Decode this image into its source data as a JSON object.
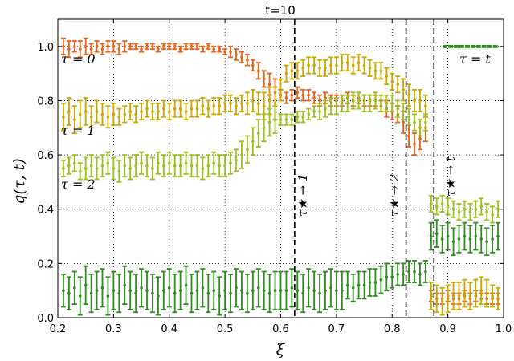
{
  "chart_data": {
    "type": "scatter",
    "title": "t=10",
    "xlabel": "ξ",
    "ylabel": "q(τ, t)",
    "xlim": [
      0.2,
      1.0
    ],
    "ylim": [
      0.0,
      1.1
    ],
    "xticks": [
      0.2,
      0.3,
      0.4,
      0.5,
      0.6,
      0.7,
      0.8,
      0.9,
      1.0
    ],
    "xtick_labels": [
      "0.2",
      "0.3",
      "0.4",
      "0.5",
      "0.6",
      "0.7",
      "0.8",
      "0.9",
      "1.0"
    ],
    "yticks": [
      0.0,
      0.2,
      0.4,
      0.6,
      0.8,
      1.0
    ],
    "ytick_labels": [
      "0.0",
      "0.2",
      "0.4",
      "0.6",
      "0.8",
      "1.0"
    ],
    "grid": true,
    "x": [
      0.21,
      0.22,
      0.23,
      0.24,
      0.25,
      0.26,
      0.27,
      0.28,
      0.29,
      0.3,
      0.31,
      0.32,
      0.33,
      0.34,
      0.35,
      0.36,
      0.37,
      0.38,
      0.39,
      0.4,
      0.41,
      0.42,
      0.43,
      0.44,
      0.45,
      0.46,
      0.47,
      0.48,
      0.49,
      0.5,
      0.51,
      0.52,
      0.53,
      0.54,
      0.55,
      0.56,
      0.57,
      0.58,
      0.59,
      0.6,
      0.61,
      0.62,
      0.63,
      0.64,
      0.65,
      0.66,
      0.67,
      0.68,
      0.69,
      0.7,
      0.71,
      0.72,
      0.73,
      0.74,
      0.75,
      0.76,
      0.77,
      0.78,
      0.79,
      0.8,
      0.81,
      0.82,
      0.83,
      0.84,
      0.85,
      0.86,
      0.87,
      0.88,
      0.89,
      0.9,
      0.91,
      0.92,
      0.93,
      0.94,
      0.95,
      0.96,
      0.97,
      0.98,
      0.99
    ],
    "series": [
      {
        "color": "#e8621a",
        "values": [
          1.0,
          0.99,
          1.0,
          0.99,
          1.0,
          0.99,
          1.0,
          0.99,
          1.0,
          1.0,
          0.99,
          1.0,
          1.0,
          1.0,
          0.99,
          1.0,
          1.0,
          0.99,
          1.0,
          1.0,
          1.0,
          0.99,
          1.0,
          1.0,
          1.0,
          0.99,
          1.0,
          0.99,
          0.99,
          0.98,
          0.98,
          0.97,
          0.96,
          0.95,
          0.93,
          0.91,
          0.88,
          0.86,
          0.83,
          0.82,
          0.81,
          0.82,
          0.83,
          0.82,
          0.82,
          0.81,
          0.8,
          0.81,
          0.8,
          0.8,
          0.8,
          0.81,
          0.8,
          0.81,
          0.8,
          0.8,
          0.8,
          0.78,
          0.77,
          0.76,
          0.75,
          0.72,
          0.67,
          0.64,
          0.66,
          0.7,
          0.08,
          0.07,
          0.07,
          0.08,
          0.07,
          0.07,
          0.08,
          0.07,
          0.08,
          0.07,
          0.07,
          0.07,
          0.07
        ],
        "errors": [
          0.03,
          0.03,
          0.02,
          0.03,
          0.03,
          0.02,
          0.02,
          0.02,
          0.02,
          0.02,
          0.02,
          0.02,
          0.01,
          0.01,
          0.01,
          0.01,
          0.01,
          0.01,
          0.01,
          0.01,
          0.01,
          0.01,
          0.01,
          0.01,
          0.01,
          0.01,
          0.01,
          0.01,
          0.01,
          0.01,
          0.02,
          0.02,
          0.02,
          0.02,
          0.02,
          0.03,
          0.03,
          0.04,
          0.05,
          0.02,
          0.02,
          0.02,
          0.02,
          0.02,
          0.02,
          0.02,
          0.02,
          0.02,
          0.02,
          0.02,
          0.02,
          0.02,
          0.02,
          0.02,
          0.02,
          0.02,
          0.02,
          0.02,
          0.03,
          0.03,
          0.03,
          0.04,
          0.04,
          0.04,
          0.04,
          0.05,
          0.02,
          0.02,
          0.02,
          0.02,
          0.02,
          0.02,
          0.02,
          0.02,
          0.02,
          0.02,
          0.02,
          0.02,
          0.02
        ]
      },
      {
        "color": "#c9a800",
        "values": [
          0.74,
          0.76,
          0.73,
          0.75,
          0.76,
          0.74,
          0.76,
          0.75,
          0.74,
          0.75,
          0.74,
          0.75,
          0.76,
          0.75,
          0.76,
          0.77,
          0.76,
          0.76,
          0.77,
          0.76,
          0.77,
          0.77,
          0.76,
          0.77,
          0.77,
          0.78,
          0.77,
          0.78,
          0.78,
          0.79,
          0.79,
          0.78,
          0.79,
          0.79,
          0.8,
          0.79,
          0.78,
          0.8,
          0.79,
          0.84,
          0.9,
          0.91,
          0.91,
          0.92,
          0.93,
          0.93,
          0.92,
          0.92,
          0.93,
          0.93,
          0.94,
          0.94,
          0.93,
          0.94,
          0.93,
          0.92,
          0.91,
          0.91,
          0.89,
          0.87,
          0.86,
          0.84,
          0.82,
          0.8,
          0.8,
          0.78,
          0.08,
          0.07,
          0.06,
          0.07,
          0.08,
          0.08,
          0.09,
          0.08,
          0.09,
          0.1,
          0.09,
          0.08,
          0.07
        ],
        "errors": [
          0.05,
          0.05,
          0.05,
          0.05,
          0.05,
          0.04,
          0.04,
          0.04,
          0.04,
          0.04,
          0.03,
          0.03,
          0.03,
          0.03,
          0.03,
          0.03,
          0.03,
          0.03,
          0.03,
          0.03,
          0.03,
          0.03,
          0.03,
          0.03,
          0.03,
          0.03,
          0.03,
          0.03,
          0.03,
          0.03,
          0.03,
          0.03,
          0.03,
          0.04,
          0.04,
          0.04,
          0.05,
          0.05,
          0.06,
          0.04,
          0.03,
          0.03,
          0.03,
          0.03,
          0.03,
          0.03,
          0.03,
          0.03,
          0.03,
          0.03,
          0.03,
          0.03,
          0.03,
          0.03,
          0.03,
          0.03,
          0.03,
          0.03,
          0.03,
          0.03,
          0.03,
          0.04,
          0.04,
          0.04,
          0.04,
          0.04,
          0.05,
          0.05,
          0.05,
          0.05,
          0.05,
          0.05,
          0.05,
          0.05,
          0.05,
          0.05,
          0.05,
          0.04,
          0.04
        ]
      },
      {
        "color": "#9bc11b",
        "values": [
          0.55,
          0.56,
          0.57,
          0.54,
          0.55,
          0.56,
          0.55,
          0.56,
          0.57,
          0.55,
          0.54,
          0.56,
          0.55,
          0.56,
          0.57,
          0.56,
          0.55,
          0.57,
          0.56,
          0.57,
          0.56,
          0.56,
          0.57,
          0.56,
          0.56,
          0.55,
          0.56,
          0.57,
          0.56,
          0.56,
          0.57,
          0.58,
          0.6,
          0.62,
          0.65,
          0.68,
          0.7,
          0.72,
          0.73,
          0.73,
          0.73,
          0.73,
          0.74,
          0.74,
          0.75,
          0.76,
          0.76,
          0.77,
          0.78,
          0.78,
          0.79,
          0.79,
          0.8,
          0.8,
          0.79,
          0.79,
          0.8,
          0.79,
          0.79,
          0.79,
          0.77,
          0.76,
          0.74,
          0.72,
          0.7,
          0.72,
          0.42,
          0.41,
          0.42,
          0.41,
          0.4,
          0.39,
          0.4,
          0.39,
          0.4,
          0.41,
          0.39,
          0.38,
          0.4
        ],
        "errors": [
          0.03,
          0.03,
          0.03,
          0.03,
          0.04,
          0.04,
          0.04,
          0.04,
          0.04,
          0.04,
          0.04,
          0.04,
          0.04,
          0.04,
          0.04,
          0.04,
          0.04,
          0.04,
          0.04,
          0.04,
          0.04,
          0.04,
          0.04,
          0.04,
          0.04,
          0.04,
          0.04,
          0.04,
          0.04,
          0.04,
          0.04,
          0.04,
          0.05,
          0.05,
          0.05,
          0.05,
          0.05,
          0.05,
          0.05,
          0.02,
          0.02,
          0.02,
          0.02,
          0.02,
          0.02,
          0.02,
          0.03,
          0.03,
          0.03,
          0.03,
          0.03,
          0.03,
          0.03,
          0.03,
          0.03,
          0.03,
          0.03,
          0.03,
          0.03,
          0.03,
          0.03,
          0.03,
          0.03,
          0.03,
          0.03,
          0.03,
          0.03,
          0.03,
          0.03,
          0.03,
          0.03,
          0.03,
          0.03,
          0.03,
          0.03,
          0.03,
          0.03,
          0.03,
          0.03
        ]
      },
      {
        "color": "#2e8b1e",
        "values": [
          0.1,
          0.09,
          0.11,
          0.08,
          0.12,
          0.09,
          0.1,
          0.11,
          0.08,
          0.1,
          0.09,
          0.12,
          0.1,
          0.09,
          0.11,
          0.1,
          0.09,
          0.08,
          0.1,
          0.11,
          0.09,
          0.1,
          0.12,
          0.09,
          0.1,
          0.11,
          0.09,
          0.1,
          0.08,
          0.1,
          0.09,
          0.11,
          0.1,
          0.09,
          0.1,
          0.11,
          0.1,
          0.09,
          0.1,
          0.1,
          0.1,
          0.11,
          0.1,
          0.09,
          0.11,
          0.1,
          0.09,
          0.1,
          0.11,
          0.1,
          0.1,
          0.12,
          0.11,
          0.12,
          0.12,
          0.13,
          0.13,
          0.14,
          0.15,
          0.15,
          0.16,
          0.16,
          0.17,
          0.17,
          0.16,
          0.17,
          0.3,
          0.31,
          0.29,
          0.3,
          0.28,
          0.29,
          0.3,
          0.29,
          0.3,
          0.29,
          0.28,
          0.29,
          0.3
        ],
        "errors": [
          0.06,
          0.06,
          0.06,
          0.07,
          0.07,
          0.07,
          0.07,
          0.07,
          0.07,
          0.07,
          0.07,
          0.07,
          0.07,
          0.07,
          0.07,
          0.07,
          0.07,
          0.07,
          0.07,
          0.07,
          0.07,
          0.07,
          0.07,
          0.07,
          0.07,
          0.07,
          0.07,
          0.07,
          0.07,
          0.07,
          0.07,
          0.07,
          0.07,
          0.07,
          0.07,
          0.07,
          0.07,
          0.07,
          0.07,
          0.07,
          0.07,
          0.07,
          0.07,
          0.07,
          0.07,
          0.07,
          0.07,
          0.07,
          0.07,
          0.07,
          0.07,
          0.05,
          0.05,
          0.05,
          0.05,
          0.05,
          0.05,
          0.05,
          0.05,
          0.04,
          0.04,
          0.04,
          0.04,
          0.04,
          0.04,
          0.04,
          0.05,
          0.05,
          0.05,
          0.05,
          0.05,
          0.05,
          0.05,
          0.05,
          0.05,
          0.05,
          0.05,
          0.05,
          0.05
        ]
      }
    ],
    "extra_series": [
      {
        "color": "#2e8b1e",
        "x": [
          0.895,
          0.905,
          0.915,
          0.925,
          0.935,
          0.945,
          0.955,
          0.965,
          0.975,
          0.985
        ],
        "values": [
          1.0,
          1.0,
          1.0,
          1.0,
          1.0,
          1.0,
          1.0,
          1.0,
          1.0,
          1.0
        ],
        "errors": [
          0.003,
          0.003,
          0.003,
          0.003,
          0.003,
          0.003,
          0.003,
          0.003,
          0.003,
          0.003
        ]
      }
    ],
    "vlines": [
      {
        "x": 0.625,
        "style": "dashed",
        "color": "#000000"
      },
      {
        "x": 0.825,
        "style": "dashed",
        "color": "#000000"
      },
      {
        "x": 0.875,
        "style": "dashed",
        "color": "#000000"
      }
    ],
    "annotations": {
      "tau0": "τ = 0",
      "tau1": "τ = 1",
      "tau2": "τ = 2",
      "taut": "τ = t",
      "star1": "τ★ → 1",
      "star2": "τ★ → 2",
      "start": "τ★ → t"
    }
  }
}
